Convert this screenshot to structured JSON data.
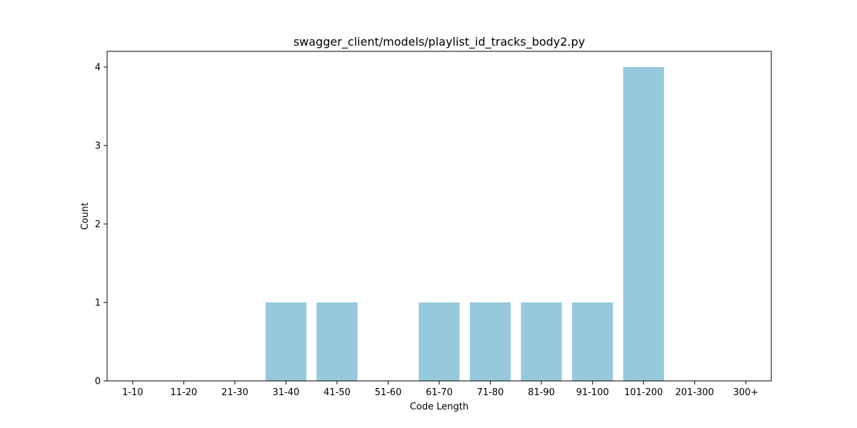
{
  "chart_data": {
    "type": "bar",
    "title": "swagger_client/models/playlist_id_tracks_body2.py",
    "xlabel": "Code Length",
    "ylabel": "Count",
    "categories": [
      "1-10",
      "11-20",
      "21-30",
      "31-40",
      "41-50",
      "51-60",
      "61-70",
      "71-80",
      "81-90",
      "91-100",
      "101-200",
      "201-300",
      "300+"
    ],
    "values": [
      0,
      0,
      0,
      1,
      1,
      0,
      1,
      1,
      1,
      1,
      4,
      0,
      0
    ],
    "ylim": [
      0,
      4.2
    ],
    "yticks": [
      0,
      1,
      2,
      3,
      4
    ],
    "bar_color": "#96c9dc",
    "grid": false,
    "legend": "none"
  }
}
